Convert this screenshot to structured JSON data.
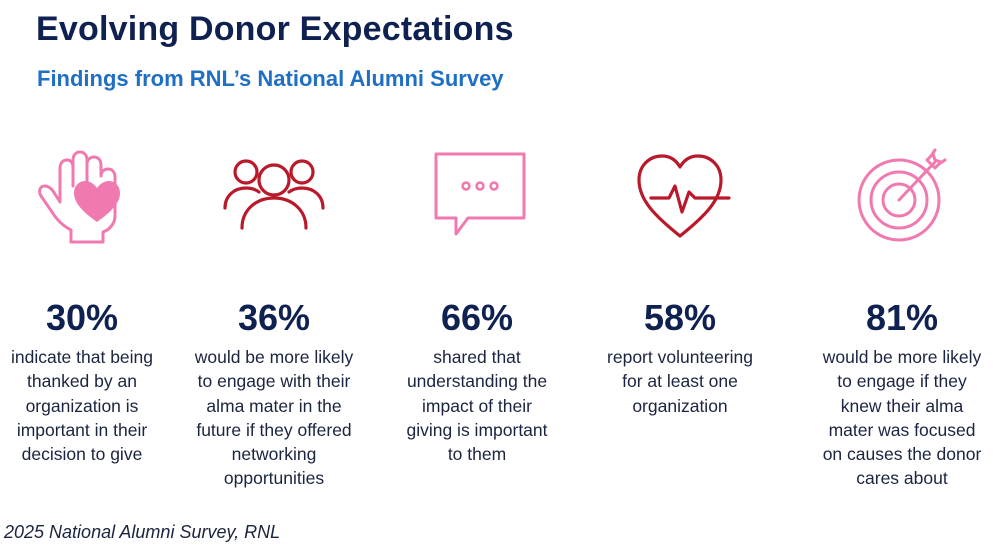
{
  "header": {
    "title": "Evolving Donor Expectations",
    "subtitle": "Findings from RNL’s National Alumni Survey"
  },
  "colors": {
    "navy": "#0f2150",
    "blue": "#1f6fc5",
    "pink": "#f07ab0",
    "red": "#b8192b"
  },
  "stats": [
    {
      "icon": "hand-heart-icon",
      "percent": "30%",
      "lines": [
        "indicate that being",
        "thanked by an",
        "organization is",
        "important in their",
        "decision to give"
      ]
    },
    {
      "icon": "people-group-icon",
      "percent": "36%",
      "lines": [
        "would be more likely",
        "to engage with their",
        "alma mater in the",
        "future if they offered",
        "networking",
        "opportunities"
      ]
    },
    {
      "icon": "chat-bubble-icon",
      "percent": "66%",
      "lines": [
        "shared that",
        "understanding the",
        "impact of their",
        "giving is important",
        "to them"
      ]
    },
    {
      "icon": "heartbeat-icon",
      "percent": "58%",
      "lines": [
        "report volunteering",
        "for at least one",
        "organization"
      ]
    },
    {
      "icon": "target-arrow-icon",
      "percent": "81%",
      "lines": [
        "would be more likely",
        "to engage if they",
        "knew their alma",
        "mater was focused",
        "on causes the donor",
        "cares about"
      ]
    }
  ],
  "footer": {
    "source": "2025 National Alumni Survey, RNL"
  }
}
